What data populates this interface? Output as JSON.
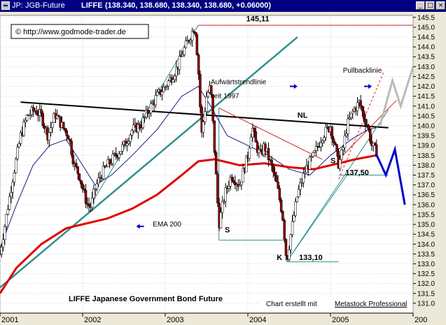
{
  "window": {
    "symbol": "JP: JGB-Future",
    "exchange": "LIFFE",
    "quote": "(138.340, 138.680, 138.340, 138.680, +0.06000)",
    "buttons": {
      "minimize": "_",
      "maximize": "□",
      "close": "×"
    }
  },
  "chart_data": {
    "type": "candlestick",
    "title": "LIFFE Japanese Government Bond Future",
    "copyright": "© http://www.godmode-trader.de",
    "credit_prefix": "Chart erstellt mit",
    "credit_link": "Metastock Professional",
    "y_axis": {
      "min": 130.5,
      "max": 145.6,
      "ticks": [
        "131.0",
        "131.5",
        "132.0",
        "132.5",
        "133.0",
        "133.5",
        "134.0",
        "134.5",
        "135.0",
        "135.5",
        "136.0",
        "136.5",
        "137.0",
        "137.5",
        "138.0",
        "138.5",
        "139.0",
        "139.5",
        "140.0",
        "140.5",
        "141.0",
        "141.5",
        "142.0",
        "142.5",
        "143.0",
        "143.5",
        "144.0",
        "144.5",
        "145.0",
        "145.5"
      ]
    },
    "x_axis": {
      "start": 2001.0,
      "end": 2006.0,
      "ticks": [
        {
          "label": "2001",
          "t": 2001.0
        },
        {
          "label": "2002",
          "t": 2002.0
        },
        {
          "label": "2003",
          "t": 2003.0
        },
        {
          "label": "2004",
          "t": 2004.0
        },
        {
          "label": "2005",
          "t": 2005.0
        },
        {
          "label": "200",
          "t": 2006.0
        }
      ]
    },
    "price_path": [
      [
        2001.0,
        133.5
      ],
      [
        2001.08,
        135.5
      ],
      [
        2001.16,
        137.5
      ],
      [
        2001.25,
        139.5
      ],
      [
        2001.33,
        140.5
      ],
      [
        2001.42,
        140.8
      ],
      [
        2001.5,
        140.5
      ],
      [
        2001.58,
        139.5
      ],
      [
        2001.67,
        140.6
      ],
      [
        2001.75,
        140.0
      ],
      [
        2001.83,
        139.5
      ],
      [
        2001.9,
        138.0
      ],
      [
        2001.96,
        137.5
      ],
      [
        2002.02,
        136.5
      ],
      [
        2002.06,
        136.0
      ],
      [
        2002.1,
        135.9
      ],
      [
        2002.15,
        136.8
      ],
      [
        2002.22,
        137.5
      ],
      [
        2002.3,
        138.0
      ],
      [
        2002.4,
        138.5
      ],
      [
        2002.5,
        139.0
      ],
      [
        2002.6,
        139.8
      ],
      [
        2002.7,
        140.0
      ],
      [
        2002.8,
        140.8
      ],
      [
        2002.9,
        141.5
      ],
      [
        2003.0,
        142.0
      ],
      [
        2003.08,
        142.5
      ],
      [
        2003.15,
        143.0
      ],
      [
        2003.22,
        143.8
      ],
      [
        2003.3,
        144.5
      ],
      [
        2003.36,
        145.1
      ],
      [
        2003.4,
        143.0
      ],
      [
        2003.44,
        139.5
      ],
      [
        2003.5,
        141.5
      ],
      [
        2003.55,
        142.0
      ],
      [
        2003.6,
        138.5
      ],
      [
        2003.65,
        135.0
      ],
      [
        2003.72,
        136.5
      ],
      [
        2003.8,
        137.5
      ],
      [
        2003.9,
        137.0
      ],
      [
        2004.0,
        138.5
      ],
      [
        2004.05,
        140.0
      ],
      [
        2004.1,
        139.0
      ],
      [
        2004.15,
        138.5
      ],
      [
        2004.2,
        139.0
      ],
      [
        2004.28,
        138.0
      ],
      [
        2004.35,
        137.0
      ],
      [
        2004.42,
        135.5
      ],
      [
        2004.47,
        133.1
      ],
      [
        2004.52,
        134.5
      ],
      [
        2004.6,
        136.5
      ],
      [
        2004.7,
        137.8
      ],
      [
        2004.8,
        138.5
      ],
      [
        2004.9,
        139.5
      ],
      [
        2005.0,
        140.0
      ],
      [
        2005.05,
        139.0
      ],
      [
        2005.1,
        138.0
      ],
      [
        2005.15,
        138.8
      ],
      [
        2005.2,
        140.0
      ],
      [
        2005.28,
        140.8
      ],
      [
        2005.35,
        141.2
      ],
      [
        2005.4,
        140.5
      ],
      [
        2005.45,
        140.0
      ],
      [
        2005.5,
        139.0
      ],
      [
        2005.55,
        138.7
      ]
    ],
    "ema_200": [
      [
        2001.0,
        131.5
      ],
      [
        2001.2,
        132.8
      ],
      [
        2001.5,
        134.0
      ],
      [
        2001.8,
        134.8
      ],
      [
        2002.0,
        135.0
      ],
      [
        2002.3,
        135.3
      ],
      [
        2002.6,
        135.8
      ],
      [
        2002.9,
        136.5
      ],
      [
        2003.2,
        137.5
      ],
      [
        2003.4,
        138.2
      ],
      [
        2003.6,
        138.3
      ],
      [
        2003.9,
        138.0
      ],
      [
        2004.2,
        138.1
      ],
      [
        2004.5,
        137.9
      ],
      [
        2004.8,
        137.8
      ],
      [
        2005.0,
        138.0
      ],
      [
        2005.3,
        138.3
      ],
      [
        2005.55,
        138.5
      ]
    ],
    "ema_fast": [
      [
        2001.0,
        133.8
      ],
      [
        2001.2,
        136.0
      ],
      [
        2001.4,
        138.0
      ],
      [
        2001.6,
        139.0
      ],
      [
        2001.8,
        139.3
      ],
      [
        2002.0,
        138.0
      ],
      [
        2002.15,
        137.0
      ],
      [
        2002.35,
        137.5
      ],
      [
        2002.6,
        138.5
      ],
      [
        2002.9,
        139.8
      ],
      [
        2003.2,
        141.5
      ],
      [
        2003.4,
        142.0
      ],
      [
        2003.55,
        141.0
      ],
      [
        2003.75,
        139.5
      ],
      [
        2004.0,
        139.0
      ],
      [
        2004.25,
        138.5
      ],
      [
        2004.5,
        137.8
      ],
      [
        2004.75,
        137.5
      ],
      [
        2005.0,
        138.5
      ],
      [
        2005.25,
        139.3
      ],
      [
        2005.45,
        139.8
      ],
      [
        2005.55,
        139.9
      ]
    ],
    "lines": [
      {
        "from": [
          2001.0,
          131.8
        ],
        "to": [
          2004.6,
          144.5
        ],
        "color": "#2f8f8f",
        "width": 2.5
      },
      {
        "from": [
          2002.1,
          136.0
        ],
        "to": [
          2003.4,
          145.1
        ],
        "color": "#2f8f8f",
        "width": 1
      },
      {
        "from": [
          2001.25,
          141.2
        ],
        "to": [
          2005.7,
          139.9
        ],
        "color": "#000000",
        "width": 2
      },
      {
        "from": [
          2003.65,
          140.9
        ],
        "to": [
          2004.9,
          138.3
        ],
        "color": "#cc2222",
        "width": 1
      },
      {
        "from": [
          2003.4,
          145.1
        ],
        "to": [
          2006.0,
          145.1
        ],
        "color": "#cc2222",
        "width": 1
      },
      {
        "from": [
          2004.47,
          133.1
        ],
        "to": [
          2005.7,
          140.8
        ],
        "color": "#2f8f8f",
        "width": 1
      },
      {
        "from": [
          2004.47,
          133.1
        ],
        "to": [
          2005.1,
          133.1
        ],
        "color": "#2f8f8f",
        "width": 1
      },
      {
        "from": [
          2005.1,
          137.5
        ],
        "to": [
          2005.7,
          137.5
        ],
        "color": "#2f8f8f",
        "width": 1
      },
      {
        "from": [
          2003.65,
          134.2
        ],
        "to": [
          2004.47,
          134.2
        ],
        "color": "#2f8f8f",
        "width": 1
      },
      {
        "from": [
          2003.65,
          140.9
        ],
        "to": [
          2003.65,
          134.2
        ],
        "color": "#2f8f8f",
        "width": 1
      },
      {
        "from": [
          2004.47,
          133.1
        ],
        "to": [
          2005.2,
          137.5
        ],
        "color": "#2f8f8f",
        "width": 1
      },
      {
        "from": [
          2005.08,
          138.2
        ],
        "to": [
          2005.8,
          141.3
        ],
        "color": "#cc2222",
        "width": 1
      },
      {
        "from": [
          2005.1,
          137.3
        ],
        "to": [
          2005.65,
          142.8
        ],
        "color": "#cc2222",
        "width": 1,
        "dash": "3,3"
      }
    ],
    "projections": [
      {
        "color": "#0000cc",
        "width": 3,
        "points": [
          [
            2005.55,
            138.6
          ],
          [
            2005.67,
            137.5
          ],
          [
            2005.78,
            138.8
          ],
          [
            2005.9,
            136.0
          ]
        ]
      },
      {
        "color": "#bbbbbb",
        "width": 3,
        "points": [
          [
            2005.6,
            140.0
          ],
          [
            2005.75,
            142.3
          ],
          [
            2005.85,
            141.0
          ],
          [
            2006.0,
            143.0
          ]
        ]
      }
    ],
    "annotations": [
      {
        "text": "145,11",
        "t": 2003.98,
        "v": 145.3,
        "bold": true
      },
      {
        "text": "Aufwärtstrendlinie",
        "t": 2003.55,
        "v": 142.1,
        "bold": false
      },
      {
        "text": "seit 1997",
        "t": 2003.55,
        "v": 141.4,
        "bold": false
      },
      {
        "text": "Pullbacklinie",
        "t": 2005.15,
        "v": 142.7,
        "bold": false
      },
      {
        "text": "NL",
        "t": 2004.6,
        "v": 140.4,
        "bold": true
      },
      {
        "text": "137,50",
        "t": 2005.18,
        "v": 137.5,
        "bold": true
      },
      {
        "text": "S",
        "t": 2005.0,
        "v": 138.1,
        "bold": true
      },
      {
        "text": "S",
        "t": 2003.72,
        "v": 134.6,
        "bold": true
      },
      {
        "text": "K",
        "t": 2004.35,
        "v": 133.2,
        "bold": true
      },
      {
        "text": "133,10",
        "t": 2004.62,
        "v": 133.2,
        "bold": true
      },
      {
        "text": "EMA 200",
        "t": 2002.85,
        "v": 134.9,
        "bold": false
      }
    ],
    "arrows": [
      {
        "t": 2004.55,
        "v": 142.0,
        "dir": "right"
      },
      {
        "t": 2005.45,
        "v": 142.0,
        "dir": "right"
      },
      {
        "t": 2002.7,
        "v": 134.9,
        "dir": "left"
      }
    ]
  }
}
